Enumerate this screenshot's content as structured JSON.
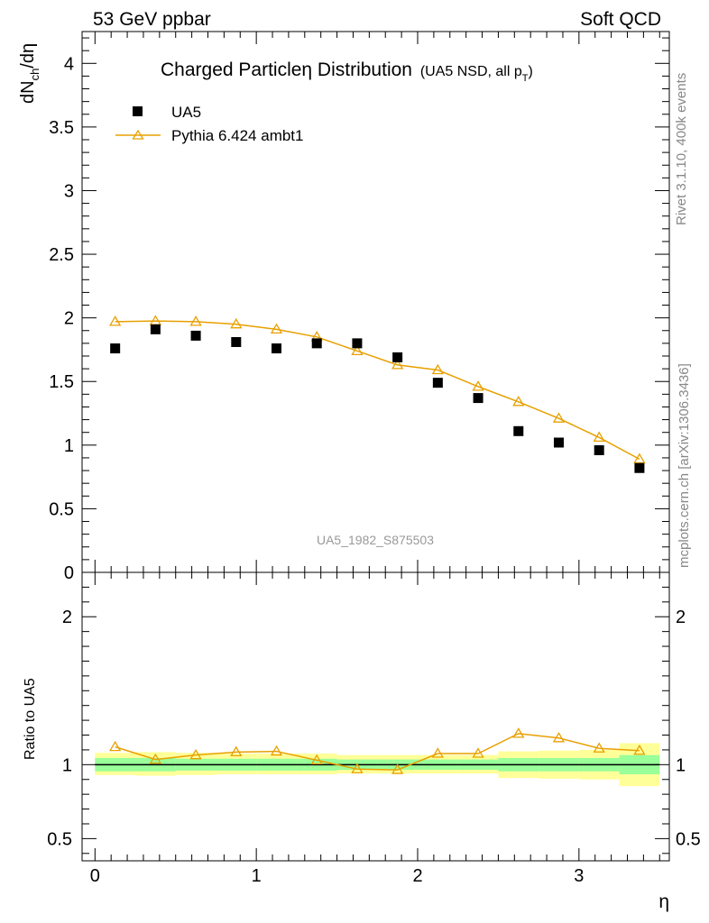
{
  "header": {
    "left": "53 GeV ppbar",
    "right": "Soft QCD"
  },
  "side": {
    "rivet": "Rivet 3.1.10,  400k events",
    "mcplots": "mcplots.cern.ch [arXiv:1306.3436]"
  },
  "plot_title": {
    "main": "Charged Particleη Distribution",
    "sub": "(UA5 NSD, all p",
    "sub_subscript": "T",
    "sub_close": ")"
  },
  "analysis_label": "UA5_1982_S875503",
  "colors": {
    "mc": "#e8a000",
    "data": "#000000",
    "band_inner": "#99ff99",
    "band_outer": "#ffff99",
    "analysis_label": "#999999",
    "side_text": "#888888"
  },
  "chart_data": [
    {
      "type": "scatter",
      "panel": "main",
      "ylabel": "dN/dη",
      "ylabel_main": "dN",
      "ylabel_sub": "ch",
      "ylabel_tail": "/dη",
      "xlim": [
        -0.08,
        3.56
      ],
      "ylim": [
        0,
        4.25
      ],
      "y_ticks": [
        "0",
        "0.5",
        "1",
        "1.5",
        "2",
        "2.5",
        "3",
        "3.5",
        "4"
      ],
      "y_tick_values": [
        0,
        0.5,
        1,
        1.5,
        2,
        2.5,
        3,
        3.5,
        4
      ],
      "legend_position": "top-left",
      "series": [
        {
          "name": "UA5",
          "marker": "filled-square",
          "x": [
            0.125,
            0.375,
            0.625,
            0.875,
            1.125,
            1.375,
            1.625,
            1.875,
            2.125,
            2.375,
            2.625,
            2.875,
            3.125,
            3.375
          ],
          "values": [
            1.76,
            1.91,
            1.86,
            1.81,
            1.76,
            1.8,
            1.8,
            1.69,
            1.49,
            1.37,
            1.11,
            1.02,
            0.96,
            0.82
          ]
        },
        {
          "name": "Pythia 6.424 ambt1",
          "marker": "open-triangle",
          "x": [
            0.125,
            0.375,
            0.625,
            0.875,
            1.125,
            1.375,
            1.625,
            1.875,
            2.125,
            2.375,
            2.625,
            2.875,
            3.125,
            3.375
          ],
          "values": [
            1.97,
            1.975,
            1.97,
            1.95,
            1.91,
            1.85,
            1.74,
            1.63,
            1.59,
            1.46,
            1.34,
            1.21,
            1.06,
            0.89
          ]
        }
      ]
    },
    {
      "type": "line",
      "panel": "ratio",
      "ylabel": "Ratio to UA5",
      "xlabel": "η",
      "xlim": [
        -0.08,
        3.56
      ],
      "ylim": [
        0.35,
        2.3
      ],
      "x_ticks": [
        "0",
        "1",
        "2",
        "3"
      ],
      "x_tick_values": [
        0,
        1,
        2,
        3
      ],
      "y_ticks": [
        "0.5",
        "1",
        "2"
      ],
      "y_tick_values": [
        0.5,
        1,
        2
      ],
      "reference_line": 1,
      "series": [
        {
          "name": "Pythia 6.424 ambt1",
          "x": [
            0.125,
            0.375,
            0.625,
            0.875,
            1.125,
            1.375,
            1.625,
            1.875,
            2.125,
            2.375,
            2.625,
            2.875,
            3.125,
            3.375
          ],
          "values": [
            1.12,
            1.035,
            1.065,
            1.085,
            1.09,
            1.03,
            0.97,
            0.965,
            1.075,
            1.075,
            1.21,
            1.18,
            1.11,
            1.095
          ]
        }
      ],
      "uncertainty_bands": {
        "x_edges": [
          0,
          0.25,
          0.5,
          0.75,
          1.0,
          1.25,
          1.5,
          1.75,
          2.0,
          2.25,
          2.5,
          2.75,
          3.0,
          3.25,
          3.5
        ],
        "inner": [
          [
            0.955,
            1.045
          ],
          [
            0.955,
            1.045
          ],
          [
            0.96,
            1.04
          ],
          [
            0.96,
            1.04
          ],
          [
            0.96,
            1.04
          ],
          [
            0.96,
            1.04
          ],
          [
            0.965,
            1.035
          ],
          [
            0.965,
            1.035
          ],
          [
            0.965,
            1.035
          ],
          [
            0.965,
            1.035
          ],
          [
            0.955,
            1.045
          ],
          [
            0.955,
            1.045
          ],
          [
            0.955,
            1.045
          ],
          [
            0.935,
            1.065
          ]
        ],
        "outer": [
          [
            0.93,
            1.08
          ],
          [
            0.925,
            1.085
          ],
          [
            0.93,
            1.08
          ],
          [
            0.935,
            1.075
          ],
          [
            0.935,
            1.075
          ],
          [
            0.935,
            1.075
          ],
          [
            0.94,
            1.065
          ],
          [
            0.94,
            1.065
          ],
          [
            0.94,
            1.065
          ],
          [
            0.94,
            1.065
          ],
          [
            0.91,
            1.09
          ],
          [
            0.905,
            1.095
          ],
          [
            0.9,
            1.1
          ],
          [
            0.855,
            1.145
          ]
        ]
      }
    }
  ]
}
